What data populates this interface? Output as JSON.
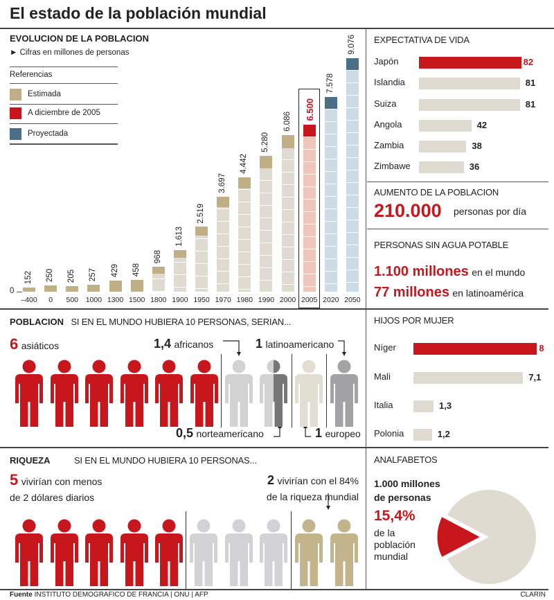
{
  "title": "El estado de la población mundial",
  "evolucion": {
    "heading": "EVOLUCION DE LA POBLACION",
    "subtitle": "► Cifras en millones de personas",
    "legend_title": "Referencias",
    "legend": [
      {
        "label": "Estimada",
        "color": "#bfae86"
      },
      {
        "label": "A diciembre de 2005",
        "color": "#c8161d"
      },
      {
        "label": "Proyectada",
        "color": "#4a6f86"
      }
    ],
    "zero_label": "0"
  },
  "chart_data": [
    {
      "type": "bar",
      "categories": [
        "-400",
        "0",
        "500",
        "1000",
        "1300",
        "1500",
        "1800",
        "1900",
        "1950",
        "1970",
        "1980",
        "1990",
        "2000",
        "2005",
        "2020",
        "2050"
      ],
      "values": [
        152,
        250,
        205,
        257,
        429,
        458,
        968,
        1613,
        2519,
        3697,
        4442,
        5280,
        6086,
        6500,
        7578,
        9076
      ],
      "value_labels": [
        "152",
        "250",
        "205",
        "257",
        "429",
        "458",
        "968",
        "1.613",
        "2.519",
        "3.697",
        "4.442",
        "5.280",
        "6.086",
        "6.500",
        "7.578",
        "9.076"
      ],
      "kinds": [
        "Estimada",
        "Estimada",
        "Estimada",
        "Estimada",
        "Estimada",
        "Estimada",
        "Estimada",
        "Estimada",
        "Estimada",
        "Estimada",
        "Estimada",
        "Estimada",
        "Estimada",
        "A diciembre de 2005",
        "Proyectada",
        "Proyectada"
      ],
      "title": "EVOLUCION DE LA POBLACION",
      "ylabel": "Cifras en millones de personas",
      "ylim": [
        0,
        9076
      ],
      "highlight": "2005"
    },
    {
      "type": "bar",
      "orientation": "horizontal",
      "title": "EXPECTATIVA DE VIDA",
      "categories": [
        "Japón",
        "Islandia",
        "Suiza",
        "Angola",
        "Zambia",
        "Zimbawe"
      ],
      "values": [
        82,
        81,
        81,
        42,
        38,
        36
      ],
      "value_labels": [
        "82",
        "81",
        "81",
        "42",
        "38",
        "36"
      ],
      "highlight": "Japón"
    },
    {
      "type": "bar",
      "orientation": "horizontal",
      "title": "HIJOS POR MUJER",
      "categories": [
        "Níger",
        "Mali",
        "Italia",
        "Polonia"
      ],
      "values": [
        8,
        7.1,
        1.3,
        1.2
      ],
      "value_labels": [
        "8",
        "7,1",
        "1,3",
        "1,2"
      ],
      "highlight": "Níger"
    },
    {
      "type": "pie",
      "title": "ANALFABETOS",
      "categories": [
        "Analfabetos",
        "Resto"
      ],
      "values": [
        15.4,
        84.6
      ]
    }
  ],
  "aumento": {
    "heading": "AUMENTO DE LA POBLACION",
    "value": "210.000",
    "unit": "personas por día"
  },
  "agua": {
    "heading": "PERSONAS SIN AGUA POTABLE",
    "v1": "1.100 millones",
    "t1": "en el mundo",
    "v2": "77 millones",
    "t2": "en latinoamérica"
  },
  "poblacion": {
    "heading": "POBLACION",
    "subheading": "SI EN EL MUNDO HUBIERA 10 PERSONAS, SERIAN...",
    "asia_n": "6",
    "asia_t": "asiáticos",
    "africa_n": "1,4",
    "africa_t": "africanos",
    "latam_n": "1",
    "latam_t": "latinoamericano",
    "na_n": "0,5",
    "na_t": "norteamericano",
    "eu_n": "1",
    "eu_t": "europeo"
  },
  "riqueza": {
    "heading": "RIQUEZA",
    "subheading": "SI EN EL MUNDO HUBIERA 10 PERSONAS...",
    "poor_n": "5",
    "poor_t1": "vivirían con menos",
    "poor_t2": "de 2 dólares diarios",
    "rich_n": "2",
    "rich_t1": "vivirían con el 84%",
    "rich_t2": "de la riqueza mundial"
  },
  "analfabetos": {
    "l1": "1.000 millones",
    "l2": "de personas",
    "pct": "15,4%",
    "t1": "de la",
    "t2": "población",
    "t3": "mundial"
  },
  "footer": {
    "label": "Fuente",
    "source": "INSTITUTO DEMOGRAFICO DE FRANCIA | ONU | AFP",
    "brand": "CLARIN"
  },
  "colors": {
    "red": "#c8161d",
    "tan": "#bfae86",
    "blue": "#4a6f86",
    "light": "#e0dbd0"
  }
}
